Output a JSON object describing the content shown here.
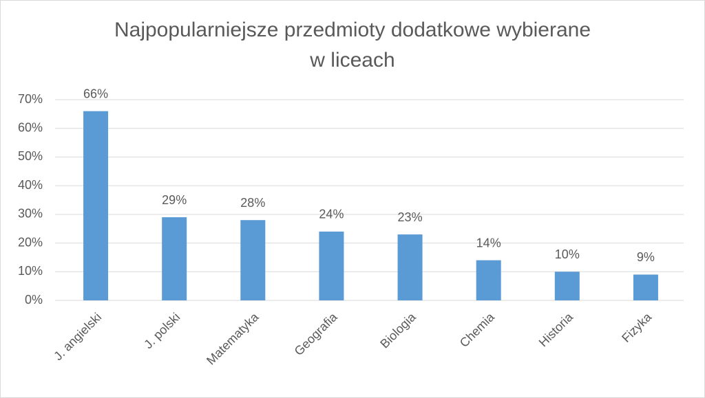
{
  "chart_data": {
    "type": "bar",
    "title": "Najpopularniejsze przedmioty dodatkowe wybierane\nw liceach",
    "categories": [
      "J. angielski",
      "J. polski",
      "Matematyka",
      "Geografia",
      "Biologia",
      "Chemia",
      "Historia",
      "Fizyka"
    ],
    "values": [
      66,
      29,
      28,
      24,
      23,
      14,
      10,
      9
    ],
    "value_labels": [
      "66%",
      "29%",
      "28%",
      "24%",
      "23%",
      "14%",
      "10%",
      "9%"
    ],
    "color": "#5b9bd5",
    "ylim": [
      0,
      70
    ],
    "yticks": [
      {
        "value": 0,
        "label": "0%"
      },
      {
        "value": 10,
        "label": "10%"
      },
      {
        "value": 20,
        "label": "20%"
      },
      {
        "value": 30,
        "label": "30%"
      },
      {
        "value": 40,
        "label": "40%"
      },
      {
        "value": 50,
        "label": "50%"
      },
      {
        "value": 60,
        "label": "60%"
      },
      {
        "value": 70,
        "label": "70%"
      }
    ],
    "grid": true
  }
}
